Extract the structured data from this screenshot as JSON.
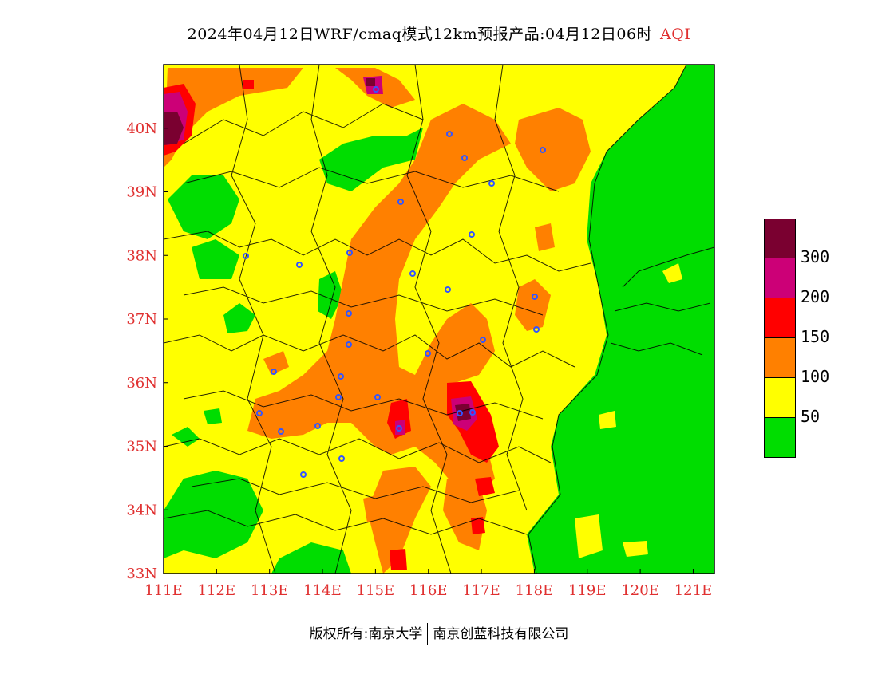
{
  "title": {
    "main": "2024年04月12日WRF/cmaq模式12km预报产品:04月12日06时",
    "variable": "AQI"
  },
  "map": {
    "lon_range": [
      111,
      121.4
    ],
    "lat_range": [
      33,
      41
    ],
    "x_ticks": [
      "111E",
      "112E",
      "113E",
      "114E",
      "115E",
      "116E",
      "117E",
      "118E",
      "119E",
      "120E",
      "121E"
    ],
    "y_ticks": [
      "33N",
      "34N",
      "35N",
      "36N",
      "37N",
      "38N",
      "39N",
      "40N"
    ],
    "axis_label_color": "#e03030",
    "station_count_shown": 30
  },
  "legend": {
    "colors": [
      "#7a0030",
      "#cc0077",
      "#ff0000",
      "#ff8000",
      "#ffff00",
      "#00dd00"
    ],
    "labels": [
      "300",
      "200",
      "150",
      "100",
      "50"
    ]
  },
  "footer": {
    "left": "版权所有:南京大学",
    "right": "南京创蓝科技有限公司"
  }
}
